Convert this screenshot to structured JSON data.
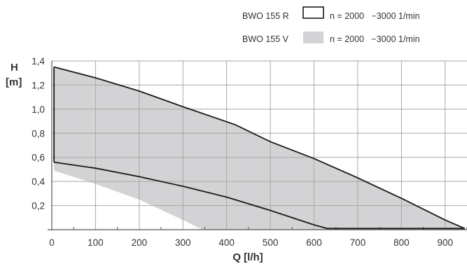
{
  "chart_data": {
    "type": "area",
    "xlabel": "Q [l/h]",
    "ylabel_line1": "H",
    "ylabel_line2": "[m]",
    "xlim": [
      0,
      950
    ],
    "ylim": [
      0,
      1.4
    ],
    "x_ticks": [
      0,
      100,
      200,
      300,
      400,
      500,
      600,
      700,
      800,
      900
    ],
    "x_tick_labels": [
      "0",
      "100",
      "200",
      "300",
      "400",
      "500",
      "600",
      "700",
      "800",
      "900"
    ],
    "y_ticks": [
      0.2,
      0.4,
      0.6,
      0.8,
      1.0,
      1.2,
      1.4
    ],
    "y_tick_labels": [
      "0,2",
      "0,4",
      "0,6",
      "0,8",
      "1,0",
      "1,2",
      "1,4"
    ],
    "grid": true,
    "legend_position": "top-right",
    "series": [
      {
        "name": "BWO 155 R",
        "speed_label": "n = 2000   −3000 1/min",
        "style": "outline",
        "color": "#1a1a1a",
        "upper_curve": {
          "x": [
            5,
            100,
            200,
            300,
            420,
            500,
            600,
            700,
            800,
            900,
            945
          ],
          "y": [
            1.35,
            1.26,
            1.15,
            1.02,
            0.87,
            0.73,
            0.59,
            0.43,
            0.26,
            0.08,
            0.01
          ]
        },
        "lower_curve": {
          "x": [
            5,
            100,
            200,
            300,
            400,
            500,
            600,
            630,
            945
          ],
          "y": [
            0.56,
            0.51,
            0.44,
            0.36,
            0.27,
            0.16,
            0.04,
            0.01,
            0.01
          ]
        }
      },
      {
        "name": "BWO 155 V",
        "speed_label": "n = 2000   −3000 1/min",
        "style": "filled",
        "color": "#d3d3d5",
        "upper_curve": {
          "x": [
            5,
            100,
            200,
            300,
            420,
            500,
            600,
            700,
            800,
            900,
            945
          ],
          "y": [
            1.35,
            1.26,
            1.15,
            1.02,
            0.87,
            0.73,
            0.59,
            0.43,
            0.26,
            0.08,
            0.01
          ]
        },
        "lower_curve": {
          "x": [
            5,
            100,
            200,
            300,
            345,
            945
          ],
          "y": [
            0.49,
            0.38,
            0.25,
            0.08,
            0.0,
            0.0
          ]
        }
      }
    ]
  },
  "colors": {
    "grid": "#a8a8a8",
    "axis": "#555555",
    "fill": "#d3d3d5",
    "line": "#1a1a1a"
  }
}
